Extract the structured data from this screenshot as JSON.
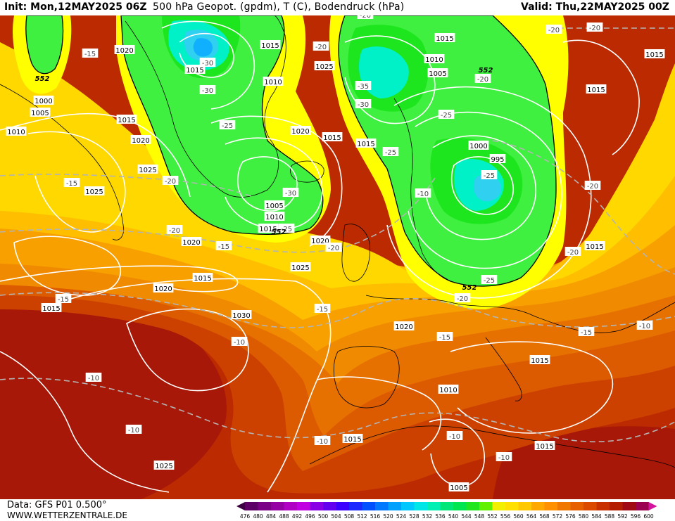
{
  "header": {
    "init": "Init: Mon,12MAY2025 06Z",
    "title": "500 hPa Geopot. (gpdm), T (C), Bodendruck (hPa)",
    "valid": "Valid: Thu,22MAY2025 00Z"
  },
  "footer": {
    "data_source": "Data: GFS P01 0.500°",
    "website": "WWW.WETTERZENTRALE.DE"
  },
  "colorbar": {
    "ticks": [
      "476",
      "480",
      "484",
      "488",
      "492",
      "496",
      "500",
      "504",
      "508",
      "512",
      "516",
      "520",
      "524",
      "528",
      "532",
      "536",
      "540",
      "544",
      "548",
      "552",
      "556",
      "560",
      "564",
      "568",
      "572",
      "576",
      "580",
      "584",
      "588",
      "592",
      "596",
      "600"
    ],
    "colors": [
      "#3a003f",
      "#5c0066",
      "#7a0085",
      "#9400a3",
      "#b000c4",
      "#c000e0",
      "#8a00e6",
      "#6400f0",
      "#3c00ff",
      "#1a28ff",
      "#0050ff",
      "#0078ff",
      "#00a0ff",
      "#00c8ff",
      "#00e6e6",
      "#00f0b4",
      "#00e678",
      "#00e650",
      "#20e620",
      "#60f000",
      "#f0f000",
      "#ffe000",
      "#ffc800",
      "#ffa800",
      "#ff9000",
      "#f07800",
      "#e66000",
      "#dc4a00",
      "#c83000",
      "#b41e00",
      "#a00a14",
      "#9c0050",
      "#d2149e"
    ]
  },
  "map": {
    "geopotential_label": "552",
    "fill_colors": {
      "c548": "#1ee61e",
      "c552": "#40f040",
      "c536": "#00f0c8",
      "c532": "#00e6e6",
      "c528": "#30d0f0",
      "c524": "#10b0ff",
      "c556": "#ffff00",
      "c560": "#ffd800",
      "c564": "#ffbe00",
      "c568": "#f7a000",
      "c572": "#f08a00",
      "c576": "#e67000",
      "c580": "#dc5a00",
      "c584": "#cc4000",
      "c588": "#bb2a00",
      "c592": "#a81808"
    },
    "isobar_labels": [
      {
        "id": "iso-1",
        "text": "1020"
      },
      {
        "id": "iso-2",
        "text": "1015"
      },
      {
        "id": "iso-3",
        "text": "1015"
      },
      {
        "id": "iso-4",
        "text": "1010"
      },
      {
        "id": "iso-5",
        "text": "1000"
      },
      {
        "id": "iso-6",
        "text": "1005"
      },
      {
        "id": "iso-7",
        "text": "1010"
      },
      {
        "id": "iso-8",
        "text": "1015"
      },
      {
        "id": "iso-9",
        "text": "1020"
      },
      {
        "id": "iso-10",
        "text": "1025"
      },
      {
        "id": "iso-11",
        "text": "1025"
      },
      {
        "id": "iso-12",
        "text": "1020"
      },
      {
        "id": "iso-13",
        "text": "1005"
      },
      {
        "id": "iso-14",
        "text": "1010"
      },
      {
        "id": "iso-15",
        "text": "1015"
      },
      {
        "id": "iso-16",
        "text": "1020"
      },
      {
        "id": "iso-17",
        "text": "1015"
      },
      {
        "id": "iso-18",
        "text": "1020"
      },
      {
        "id": "iso-19",
        "text": "1015"
      },
      {
        "id": "iso-20",
        "text": "1025"
      },
      {
        "id": "iso-21",
        "text": "1030"
      },
      {
        "id": "iso-22",
        "text": "1025"
      },
      {
        "id": "iso-23",
        "text": "1015"
      },
      {
        "id": "iso-24",
        "text": "1015"
      },
      {
        "id": "iso-25",
        "text": "1020"
      },
      {
        "id": "iso-26",
        "text": "1010"
      },
      {
        "id": "iso-27",
        "text": "1005"
      },
      {
        "id": "iso-28",
        "text": "1015"
      },
      {
        "id": "iso-29",
        "text": "1000"
      },
      {
        "id": "iso-30",
        "text": "995"
      },
      {
        "id": "iso-31",
        "text": "1015"
      },
      {
        "id": "iso-32",
        "text": "1015"
      },
      {
        "id": "iso-33",
        "text": "1010"
      },
      {
        "id": "iso-34",
        "text": "1015"
      },
      {
        "id": "iso-35",
        "text": "1015"
      },
      {
        "id": "iso-36",
        "text": "1005"
      },
      {
        "id": "iso-37",
        "text": "1025"
      },
      {
        "id": "iso-38",
        "text": "1015"
      },
      {
        "id": "iso-39",
        "text": "1015"
      },
      {
        "id": "iso-40",
        "text": "1020"
      },
      {
        "id": "iso-41",
        "text": "1015"
      },
      {
        "id": "iso-42",
        "text": "1015"
      }
    ],
    "temperature_labels": [
      {
        "id": "t-1",
        "text": "-15"
      },
      {
        "id": "t-2",
        "text": "-30"
      },
      {
        "id": "t-3",
        "text": "-30"
      },
      {
        "id": "t-4",
        "text": "-25"
      },
      {
        "id": "t-5",
        "text": "-20"
      },
      {
        "id": "t-6",
        "text": "-15"
      },
      {
        "id": "t-7",
        "text": "-25"
      },
      {
        "id": "t-8",
        "text": "-30"
      },
      {
        "id": "t-9",
        "text": "-25"
      },
      {
        "id": "t-10",
        "text": "-20"
      },
      {
        "id": "t-11",
        "text": "-15"
      },
      {
        "id": "t-12",
        "text": "-35"
      },
      {
        "id": "t-13",
        "text": "-30"
      },
      {
        "id": "t-14",
        "text": "-25"
      },
      {
        "id": "t-15",
        "text": "-20"
      },
      {
        "id": "t-16",
        "text": "-25"
      },
      {
        "id": "t-17",
        "text": "-10"
      },
      {
        "id": "t-18",
        "text": "-25"
      },
      {
        "id": "t-19",
        "text": "-20"
      },
      {
        "id": "t-20",
        "text": "-20"
      },
      {
        "id": "t-21",
        "text": "-15"
      },
      {
        "id": "t-22",
        "text": "-15"
      },
      {
        "id": "t-23",
        "text": "-10"
      },
      {
        "id": "t-24",
        "text": "-10"
      },
      {
        "id": "t-25",
        "text": "-10"
      },
      {
        "id": "t-26",
        "text": "-15"
      },
      {
        "id": "t-27",
        "text": "-10"
      },
      {
        "id": "t-28",
        "text": "-10"
      },
      {
        "id": "t-29",
        "text": "-10"
      },
      {
        "id": "t-30",
        "text": "-20"
      },
      {
        "id": "t-31",
        "text": "-20"
      },
      {
        "id": "t-32",
        "text": "-20"
      },
      {
        "id": "t-33",
        "text": "-20"
      },
      {
        "id": "t-34",
        "text": "-20"
      },
      {
        "id": "t-35",
        "text": "-20"
      },
      {
        "id": "t-36",
        "text": "-15"
      },
      {
        "id": "t-37",
        "text": "-10"
      },
      {
        "id": "t-38",
        "text": "-20"
      },
      {
        "id": "t-39",
        "text": "-25"
      },
      {
        "id": "t-40",
        "text": "-20"
      },
      {
        "id": "t-41",
        "text": "-20"
      }
    ]
  }
}
